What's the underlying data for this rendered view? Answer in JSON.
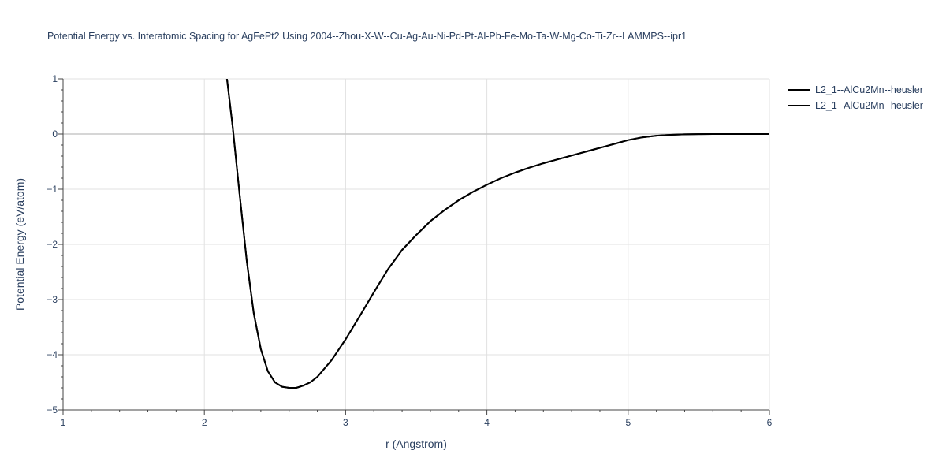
{
  "chart_data": {
    "type": "line",
    "title": "Potential Energy vs. Interatomic Spacing for AgFePt2 Using 2004--Zhou-X-W--Cu-Ag-Au-Ni-Pd-Pt-Al-Pb-Fe-Mo-Ta-W-Mg-Co-Ti-Zr--LAMMPS--ipr1",
    "xlabel": "r (Angstrom)",
    "ylabel": "Potential Energy (eV/atom)",
    "xlim": [
      1,
      6
    ],
    "ylim": [
      -5,
      1
    ],
    "x_ticks": [
      1,
      2,
      3,
      4,
      5,
      6
    ],
    "y_ticks": [
      1,
      0,
      -1,
      -2,
      -3,
      -4,
      -5
    ],
    "x_tick_labels": [
      "1",
      "2",
      "3",
      "4",
      "5",
      "6"
    ],
    "y_tick_labels": [
      "1",
      "0",
      "−1",
      "−2",
      "−3",
      "−4",
      "−5"
    ],
    "grid": true,
    "legend_position": "top-right",
    "series": [
      {
        "name": "L2_1--AlCu2Mn--heusler",
        "color": "#000000",
        "x": [
          2.16,
          2.2,
          2.25,
          2.3,
          2.35,
          2.4,
          2.45,
          2.5,
          2.55,
          2.6,
          2.65,
          2.7,
          2.75,
          2.8,
          2.9,
          3.0,
          3.1,
          3.2,
          3.3,
          3.4,
          3.5,
          3.6,
          3.7,
          3.8,
          3.9,
          4.0,
          4.1,
          4.2,
          4.3,
          4.4,
          4.5,
          4.6,
          4.7,
          4.8,
          4.9,
          5.0,
          5.1,
          5.2,
          5.3,
          5.4,
          5.5,
          5.6,
          5.8,
          6.0
        ],
        "y": [
          1.0,
          0.15,
          -1.1,
          -2.3,
          -3.25,
          -3.9,
          -4.3,
          -4.5,
          -4.58,
          -4.6,
          -4.6,
          -4.56,
          -4.5,
          -4.4,
          -4.1,
          -3.72,
          -3.3,
          -2.87,
          -2.45,
          -2.1,
          -1.83,
          -1.58,
          -1.38,
          -1.2,
          -1.05,
          -0.92,
          -0.8,
          -0.7,
          -0.61,
          -0.53,
          -0.46,
          -0.39,
          -0.32,
          -0.25,
          -0.18,
          -0.11,
          -0.06,
          -0.03,
          -0.015,
          -0.006,
          -0.002,
          0.0,
          0.0,
          0.0
        ]
      },
      {
        "name": "L2_1--AlCu2Mn--heusler",
        "color": "#000000",
        "x": [
          2.16,
          2.2,
          2.25,
          2.3,
          2.35,
          2.4,
          2.45,
          2.5,
          2.55,
          2.6,
          2.65,
          2.7,
          2.75,
          2.8,
          2.9,
          3.0,
          3.1,
          3.2,
          3.3,
          3.4,
          3.5,
          3.6,
          3.7,
          3.8,
          3.9,
          4.0,
          4.1,
          4.2,
          4.3,
          4.4,
          4.5,
          4.6,
          4.7,
          4.8,
          4.9,
          5.0,
          5.1,
          5.2,
          5.3,
          5.4,
          5.5,
          5.6,
          5.8,
          6.0
        ],
        "y": [
          1.0,
          0.15,
          -1.1,
          -2.3,
          -3.25,
          -3.9,
          -4.3,
          -4.5,
          -4.58,
          -4.6,
          -4.6,
          -4.56,
          -4.5,
          -4.4,
          -4.1,
          -3.72,
          -3.3,
          -2.87,
          -2.45,
          -2.1,
          -1.83,
          -1.58,
          -1.38,
          -1.2,
          -1.05,
          -0.92,
          -0.8,
          -0.7,
          -0.61,
          -0.53,
          -0.46,
          -0.39,
          -0.32,
          -0.25,
          -0.18,
          -0.11,
          -0.06,
          -0.03,
          -0.015,
          -0.006,
          -0.002,
          0.0,
          0.0,
          0.0
        ]
      }
    ]
  }
}
